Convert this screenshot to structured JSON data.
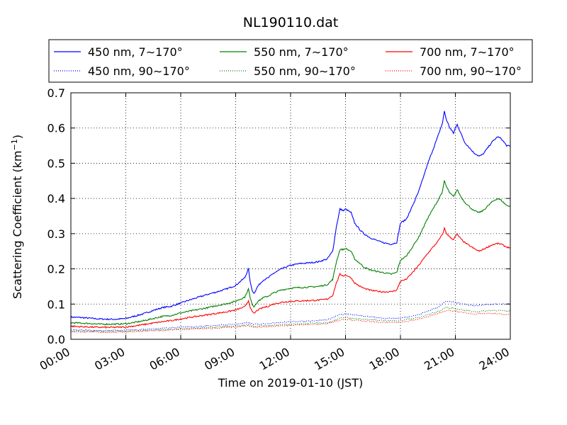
{
  "chart_data": {
    "type": "line",
    "title": "NL190110.dat",
    "xlabel": "Time on 2019-01-10 (JST)",
    "ylabel": "Scattering Coefficient (km",
    "ylabel_sup": "−1",
    "ylabel_close": ")",
    "xlim": [
      0,
      24
    ],
    "ylim": [
      0,
      0.7
    ],
    "grid": true,
    "legend_position": "top (above plot)",
    "x_ticks": [
      {
        "value": 0,
        "label": "00:00"
      },
      {
        "value": 3,
        "label": "03:00"
      },
      {
        "value": 6,
        "label": "06:00"
      },
      {
        "value": 9,
        "label": "09:00"
      },
      {
        "value": 12,
        "label": "12:00"
      },
      {
        "value": 15,
        "label": "15:00"
      },
      {
        "value": 18,
        "label": "18:00"
      },
      {
        "value": 21,
        "label": "21:00"
      },
      {
        "value": 24,
        "label": "24:00"
      }
    ],
    "y_ticks": [
      {
        "value": 0,
        "label": "0.0"
      },
      {
        "value": 0.1,
        "label": "0.1"
      },
      {
        "value": 0.2,
        "label": "0.2"
      },
      {
        "value": 0.3,
        "label": "0.3"
      },
      {
        "value": 0.4,
        "label": "0.4"
      },
      {
        "value": 0.5,
        "label": "0.5"
      },
      {
        "value": 0.6,
        "label": "0.6"
      },
      {
        "value": 0.7,
        "label": "0.7"
      }
    ],
    "x_unit": "hours",
    "series": [
      {
        "name": "450 nm, 7∼170°",
        "color": "#0000ff",
        "style": "solid",
        "x": [
          0,
          0.5,
          1,
          1.5,
          2,
          2.5,
          3,
          3.5,
          4,
          4.5,
          5,
          5.5,
          6,
          6.5,
          7,
          7.5,
          8,
          8.5,
          9,
          9.2,
          9.5,
          9.7,
          9.8,
          9.9,
          10,
          10.2,
          10.5,
          10.8,
          11,
          11.5,
          12,
          12.5,
          13,
          13.5,
          14,
          14.3,
          14.5,
          14.7,
          14.9,
          15,
          15.3,
          15.5,
          15.8,
          16,
          16.3,
          16.5,
          17,
          17.5,
          17.8,
          18,
          18.3,
          18.5,
          19,
          19.5,
          20,
          20.3,
          20.4,
          20.5,
          20.7,
          20.9,
          21,
          21.1,
          21.3,
          21.5,
          22,
          22.3,
          22.5,
          23,
          23.3,
          23.5,
          23.8,
          24
        ],
        "values": [
          0.063,
          0.062,
          0.06,
          0.058,
          0.057,
          0.057,
          0.059,
          0.066,
          0.073,
          0.082,
          0.09,
          0.094,
          0.103,
          0.112,
          0.12,
          0.128,
          0.135,
          0.143,
          0.153,
          0.162,
          0.175,
          0.2,
          0.16,
          0.14,
          0.13,
          0.15,
          0.168,
          0.175,
          0.185,
          0.2,
          0.21,
          0.215,
          0.217,
          0.22,
          0.228,
          0.25,
          0.32,
          0.37,
          0.365,
          0.37,
          0.36,
          0.33,
          0.31,
          0.3,
          0.29,
          0.285,
          0.275,
          0.27,
          0.275,
          0.33,
          0.34,
          0.36,
          0.42,
          0.5,
          0.57,
          0.615,
          0.648,
          0.625,
          0.6,
          0.585,
          0.6,
          0.61,
          0.585,
          0.56,
          0.53,
          0.52,
          0.525,
          0.56,
          0.575,
          0.57,
          0.55,
          0.548
        ]
      },
      {
        "name": "550 nm, 7∼170°",
        "color": "#008000",
        "style": "solid",
        "x": [
          0,
          0.5,
          1,
          1.5,
          2,
          2.5,
          3,
          3.5,
          4,
          4.5,
          5,
          5.5,
          6,
          6.5,
          7,
          7.5,
          8,
          8.5,
          9,
          9.2,
          9.5,
          9.7,
          9.8,
          9.9,
          10,
          10.2,
          10.5,
          10.8,
          11,
          11.5,
          12,
          12.5,
          13,
          13.5,
          14,
          14.3,
          14.5,
          14.7,
          14.9,
          15,
          15.3,
          15.5,
          15.8,
          16,
          16.3,
          16.5,
          17,
          17.5,
          17.8,
          18,
          18.3,
          18.5,
          19,
          19.5,
          20,
          20.3,
          20.4,
          20.5,
          20.7,
          20.9,
          21,
          21.1,
          21.3,
          21.5,
          22,
          22.3,
          22.5,
          23,
          23.3,
          23.5,
          23.8,
          24
        ],
        "values": [
          0.047,
          0.046,
          0.045,
          0.043,
          0.043,
          0.043,
          0.044,
          0.048,
          0.053,
          0.059,
          0.065,
          0.068,
          0.075,
          0.08,
          0.085,
          0.09,
          0.096,
          0.101,
          0.108,
          0.113,
          0.12,
          0.143,
          0.115,
          0.1,
          0.093,
          0.107,
          0.118,
          0.123,
          0.13,
          0.14,
          0.145,
          0.147,
          0.148,
          0.15,
          0.155,
          0.17,
          0.22,
          0.255,
          0.255,
          0.258,
          0.25,
          0.228,
          0.215,
          0.205,
          0.198,
          0.195,
          0.19,
          0.185,
          0.19,
          0.225,
          0.235,
          0.25,
          0.29,
          0.345,
          0.39,
          0.42,
          0.45,
          0.435,
          0.415,
          0.405,
          0.415,
          0.425,
          0.405,
          0.39,
          0.365,
          0.36,
          0.365,
          0.39,
          0.4,
          0.395,
          0.38,
          0.378
        ]
      },
      {
        "name": "700 nm, 7∼170°",
        "color": "#ff0000",
        "style": "solid",
        "x": [
          0,
          0.5,
          1,
          1.5,
          2,
          2.5,
          3,
          3.5,
          4,
          4.5,
          5,
          5.5,
          6,
          6.5,
          7,
          7.5,
          8,
          8.5,
          9,
          9.2,
          9.5,
          9.7,
          9.8,
          9.9,
          10,
          10.2,
          10.5,
          10.8,
          11,
          11.5,
          12,
          12.5,
          13,
          13.5,
          14,
          14.3,
          14.5,
          14.7,
          14.9,
          15,
          15.3,
          15.5,
          15.8,
          16,
          16.3,
          16.5,
          17,
          17.5,
          17.8,
          18,
          18.3,
          18.5,
          19,
          19.5,
          20,
          20.3,
          20.4,
          20.5,
          20.7,
          20.9,
          21,
          21.1,
          21.3,
          21.5,
          22,
          22.3,
          22.5,
          23,
          23.3,
          23.5,
          23.8,
          24
        ],
        "values": [
          0.037,
          0.036,
          0.035,
          0.034,
          0.034,
          0.034,
          0.035,
          0.038,
          0.042,
          0.046,
          0.05,
          0.053,
          0.058,
          0.062,
          0.066,
          0.07,
          0.074,
          0.078,
          0.083,
          0.087,
          0.092,
          0.11,
          0.09,
          0.078,
          0.073,
          0.083,
          0.09,
          0.094,
          0.099,
          0.105,
          0.108,
          0.109,
          0.11,
          0.111,
          0.114,
          0.125,
          0.16,
          0.185,
          0.18,
          0.183,
          0.175,
          0.16,
          0.15,
          0.145,
          0.14,
          0.138,
          0.135,
          0.135,
          0.14,
          0.165,
          0.17,
          0.18,
          0.21,
          0.245,
          0.275,
          0.298,
          0.315,
          0.302,
          0.29,
          0.283,
          0.292,
          0.298,
          0.285,
          0.275,
          0.258,
          0.25,
          0.255,
          0.268,
          0.272,
          0.27,
          0.262,
          0.26
        ]
      },
      {
        "name": "450 nm, 90∼170°",
        "color": "#0000ff",
        "style": "dotted",
        "x": [
          0,
          1,
          2,
          3,
          4,
          5,
          6,
          7,
          8,
          9,
          9.7,
          10,
          11,
          12,
          13,
          14,
          14.7,
          15,
          16,
          17,
          18,
          19,
          20,
          20.5,
          21,
          22,
          23,
          24
        ],
        "values": [
          0.026,
          0.026,
          0.025,
          0.026,
          0.028,
          0.031,
          0.034,
          0.036,
          0.04,
          0.043,
          0.048,
          0.042,
          0.046,
          0.05,
          0.052,
          0.055,
          0.07,
          0.072,
          0.066,
          0.06,
          0.06,
          0.07,
          0.09,
          0.108,
          0.105,
          0.095,
          0.1,
          0.1
        ]
      },
      {
        "name": "550 nm, 90∼170°",
        "color": "#008000",
        "style": "dotted",
        "x": [
          0,
          1,
          2,
          3,
          4,
          5,
          6,
          7,
          8,
          9,
          9.7,
          10,
          11,
          12,
          13,
          14,
          14.7,
          15,
          16,
          17,
          18,
          19,
          20,
          20.5,
          21,
          22,
          23,
          24
        ],
        "values": [
          0.023,
          0.023,
          0.022,
          0.023,
          0.025,
          0.027,
          0.03,
          0.032,
          0.035,
          0.038,
          0.042,
          0.037,
          0.04,
          0.043,
          0.045,
          0.047,
          0.06,
          0.062,
          0.057,
          0.053,
          0.053,
          0.062,
          0.078,
          0.09,
          0.087,
          0.078,
          0.082,
          0.08
        ]
      },
      {
        "name": "700 nm, 90∼170°",
        "color": "#ff0000",
        "style": "dotted",
        "x": [
          0,
          1,
          2,
          3,
          4,
          5,
          6,
          7,
          8,
          9,
          9.7,
          10,
          11,
          12,
          13,
          14,
          14.7,
          15,
          16,
          17,
          18,
          19,
          20,
          20.5,
          21,
          22,
          23,
          24
        ],
        "values": [
          0.021,
          0.021,
          0.02,
          0.021,
          0.023,
          0.025,
          0.028,
          0.03,
          0.032,
          0.035,
          0.038,
          0.034,
          0.037,
          0.04,
          0.042,
          0.044,
          0.055,
          0.057,
          0.052,
          0.048,
          0.048,
          0.057,
          0.072,
          0.082,
          0.08,
          0.072,
          0.073,
          0.07
        ]
      }
    ]
  }
}
